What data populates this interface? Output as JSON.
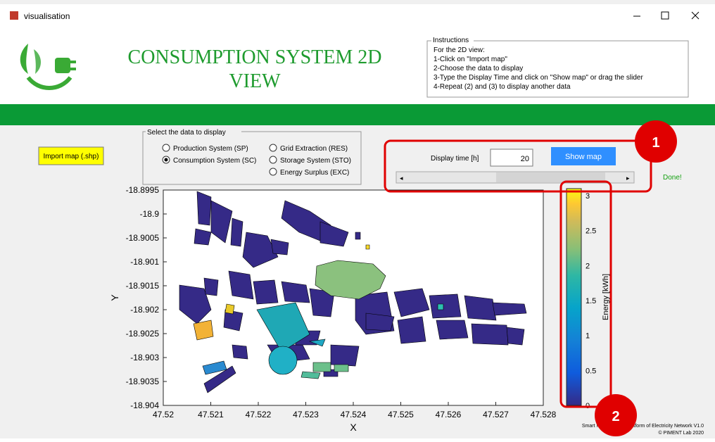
{
  "window": {
    "title": "visualisation"
  },
  "header": {
    "title_line1": "CONSUMPTION SYSTEM 2D",
    "title_line2": "VIEW"
  },
  "instructions": {
    "legend": "Instructions",
    "lines": [
      "For the 2D view:",
      "1-Click on \"Import map\"",
      "2-Choose the data to display",
      "3-Type the Display Time and click on \"Show map\" or drag the slider",
      "4-Repeat (2) and (3) to display another data"
    ]
  },
  "import_button": "Import map (.shp)",
  "data_select": {
    "legend": "Select the data to display",
    "options": [
      "Production System (SP)",
      "Consumption System (SC)",
      "Grid Extraction (RES)",
      "Storage System (STO)",
      "Energy Surplus (EXC)"
    ],
    "selected": 1
  },
  "display_time": {
    "label": "Display time [h]",
    "value": "20",
    "button": "Show map",
    "status": "Done!"
  },
  "plot": {
    "xlabel": "X",
    "ylabel": "Y",
    "xlim": [
      47.52,
      47.528
    ],
    "ylim": [
      -18.904,
      -18.8995
    ],
    "xticks": [
      47.52,
      47.521,
      47.522,
      47.523,
      47.524,
      47.525,
      47.526,
      47.527,
      47.528
    ],
    "yticks": [
      -18.8995,
      -18.9,
      -18.9005,
      -18.901,
      -18.9015,
      -18.902,
      -18.9025,
      -18.903,
      -18.9035,
      -18.904
    ],
    "colorbar": {
      "label": "Energy [kWh]",
      "clim": [
        0,
        3.1
      ],
      "ticks": [
        0,
        0.5,
        1,
        1.5,
        2,
        2.5,
        3
      ]
    }
  },
  "footer": {
    "line1": "Smart Management Platform of Electricity Network V1.0",
    "line2": "© PIMENT Lab 2020"
  },
  "callouts": [
    "1",
    "2"
  ]
}
